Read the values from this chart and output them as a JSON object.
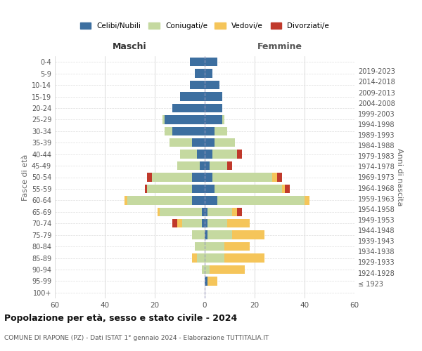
{
  "age_groups": [
    "100+",
    "95-99",
    "90-94",
    "85-89",
    "80-84",
    "75-79",
    "70-74",
    "65-69",
    "60-64",
    "55-59",
    "50-54",
    "45-49",
    "40-44",
    "35-39",
    "30-34",
    "25-29",
    "20-24",
    "15-19",
    "10-14",
    "5-9",
    "0-4"
  ],
  "birth_years": [
    "≤ 1923",
    "1924-1928",
    "1929-1933",
    "1934-1938",
    "1939-1943",
    "1944-1948",
    "1949-1953",
    "1954-1958",
    "1959-1963",
    "1964-1968",
    "1969-1973",
    "1974-1978",
    "1979-1983",
    "1984-1988",
    "1989-1993",
    "1994-1998",
    "1999-2003",
    "2004-2008",
    "2009-2013",
    "2014-2018",
    "2019-2023"
  ],
  "maschi": {
    "celibi": [
      0,
      0,
      0,
      0,
      0,
      0,
      1,
      1,
      5,
      5,
      5,
      2,
      3,
      5,
      13,
      16,
      13,
      10,
      6,
      4,
      6
    ],
    "coniugati": [
      0,
      0,
      1,
      3,
      4,
      5,
      8,
      17,
      26,
      18,
      16,
      9,
      7,
      9,
      3,
      1,
      0,
      0,
      0,
      0,
      0
    ],
    "vedovi": [
      0,
      0,
      0,
      2,
      0,
      0,
      2,
      1,
      1,
      0,
      0,
      0,
      0,
      0,
      0,
      0,
      0,
      0,
      0,
      0,
      0
    ],
    "divorziati": [
      0,
      0,
      0,
      0,
      0,
      0,
      2,
      0,
      0,
      1,
      2,
      0,
      0,
      0,
      0,
      0,
      0,
      0,
      0,
      0,
      0
    ]
  },
  "femmine": {
    "nubili": [
      0,
      1,
      0,
      0,
      0,
      1,
      1,
      1,
      5,
      4,
      3,
      2,
      3,
      4,
      4,
      7,
      7,
      7,
      6,
      3,
      5
    ],
    "coniugate": [
      0,
      0,
      2,
      8,
      8,
      10,
      8,
      10,
      35,
      27,
      24,
      7,
      10,
      8,
      5,
      1,
      0,
      0,
      0,
      0,
      0
    ],
    "vedove": [
      0,
      4,
      14,
      16,
      10,
      13,
      9,
      2,
      2,
      1,
      2,
      0,
      0,
      0,
      0,
      0,
      0,
      0,
      0,
      0,
      0
    ],
    "divorziate": [
      0,
      0,
      0,
      0,
      0,
      0,
      0,
      2,
      0,
      2,
      2,
      2,
      2,
      0,
      0,
      0,
      0,
      0,
      0,
      0,
      0
    ]
  },
  "colors": {
    "celibi": "#3d6fa0",
    "coniugati": "#c5d9a0",
    "vedovi": "#f5c55a",
    "divorziati": "#c0392b"
  },
  "xlim": 60,
  "title": "Popolazione per età, sesso e stato civile - 2024",
  "subtitle": "COMUNE DI RAPONE (PZ) - Dati ISTAT 1° gennaio 2024 - Elaborazione TUTTITALIA.IT",
  "xlabel_left": "Maschi",
  "xlabel_right": "Femmine",
  "ylabel_left": "Fasce di età",
  "ylabel_right": "Anni di nascita",
  "legend_labels": [
    "Celibi/Nubili",
    "Coniugati/e",
    "Vedovi/e",
    "Divorziati/e"
  ],
  "bar_height": 0.75
}
